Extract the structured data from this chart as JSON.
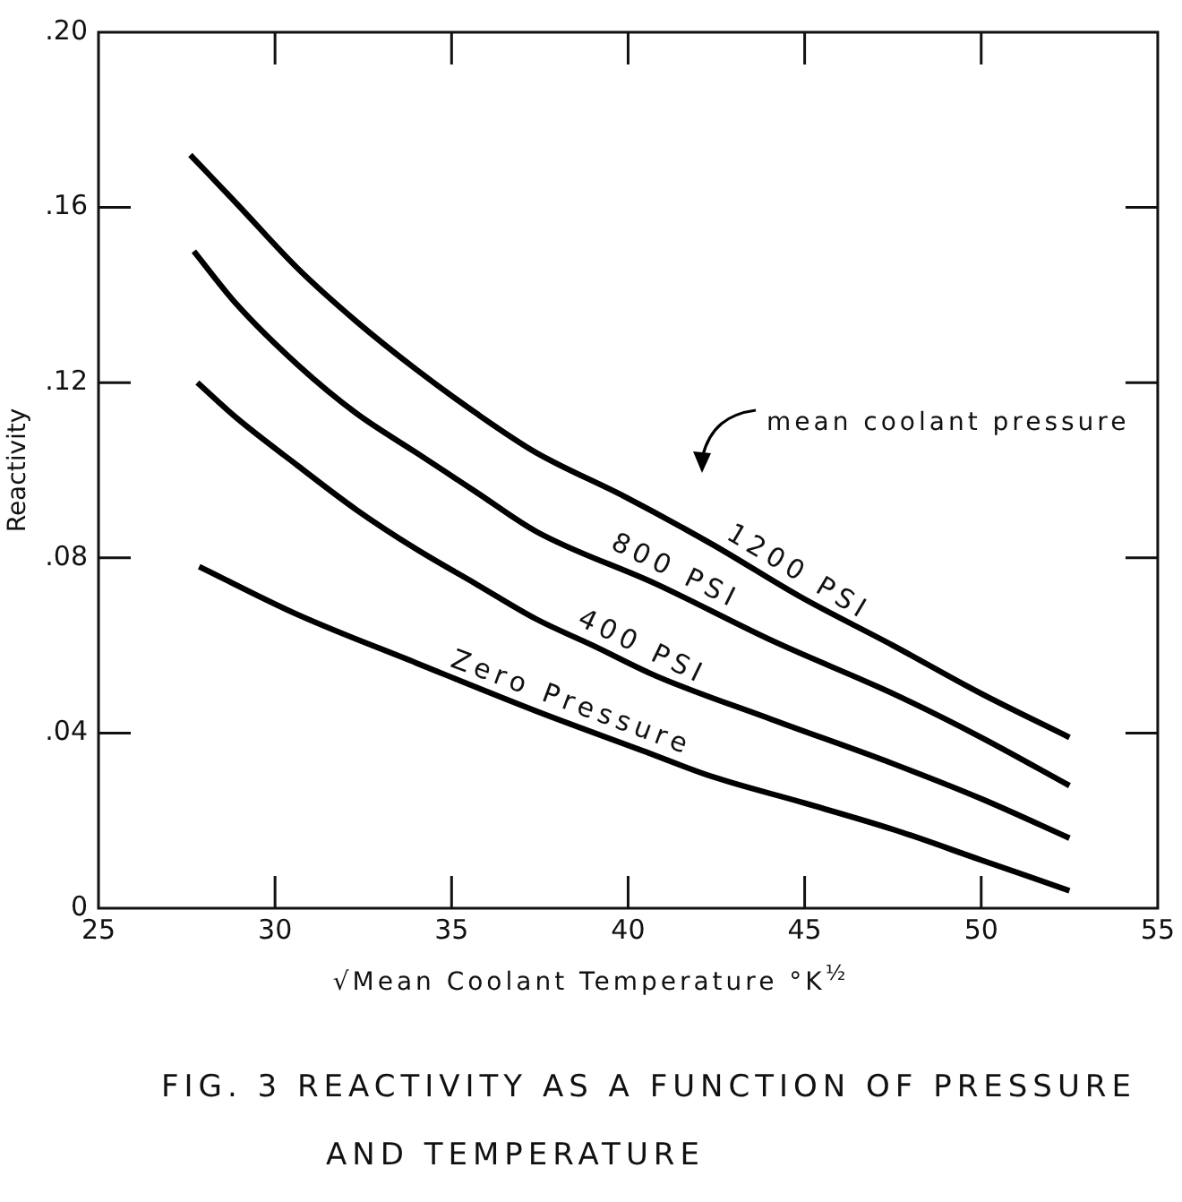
{
  "chart_data": {
    "type": "line",
    "title": "FIG. 3  REACTIVITY AS A FUNCTION OF PRESSURE AND TEMPERATURE",
    "xlabel": "√Mean Coolant Temperature  °K$^{½}$",
    "ylabel": "Reactivity",
    "annotations": [
      "mean coolant pressure"
    ],
    "xlim": [
      25,
      55
    ],
    "xticks": [
      25,
      30,
      35,
      40,
      45,
      50,
      55
    ],
    "ylim": [
      0,
      0.2
    ],
    "yticks": [
      {
        "value": 0,
        "label": "0"
      },
      {
        "value": 0.04,
        "label": ".04"
      },
      {
        "value": 0.08,
        "label": ".08"
      },
      {
        "value": 0.12,
        "label": ".12"
      },
      {
        "value": 0.16,
        "label": ".16"
      },
      {
        "value": 0.2,
        "label": ".20"
      }
    ],
    "grid": false,
    "legend": false,
    "marker": "none",
    "line_style": "solid",
    "series": [
      {
        "name": "1200 PSI",
        "color": "#000000",
        "x": [
          27.6,
          28.9,
          30.65,
          32.3,
          34.0,
          35.7,
          37.4,
          39.9,
          42.4,
          44.9,
          47.5,
          50.0,
          52.5
        ],
        "values": [
          0.172,
          0.161,
          0.146,
          0.134,
          0.123,
          0.113,
          0.104,
          0.094,
          0.083,
          0.071,
          0.06,
          0.049,
          0.039
        ]
      },
      {
        "name": "800 PSI",
        "color": "#000000",
        "x": [
          27.7,
          28.9,
          30.65,
          32.3,
          34.0,
          35.7,
          37.4,
          40.8,
          44.1,
          47.5,
          50.0,
          52.5
        ],
        "values": [
          0.15,
          0.138,
          0.124,
          0.113,
          0.104,
          0.095,
          0.086,
          0.074,
          0.061,
          0.049,
          0.039,
          0.028
        ]
      },
      {
        "name": "400 PSI",
        "color": "#000000",
        "x": [
          27.8,
          28.9,
          30.65,
          32.3,
          34.0,
          35.7,
          37.4,
          39.0,
          40.8,
          44.1,
          47.5,
          50.0,
          52.5
        ],
        "values": [
          0.12,
          0.112,
          0.101,
          0.091,
          0.082,
          0.074,
          0.066,
          0.06,
          0.053,
          0.043,
          0.033,
          0.025,
          0.016
        ]
      },
      {
        "name": "Zero Pressure",
        "color": "#000000",
        "x": [
          27.85,
          30.65,
          34.0,
          37.4,
          40.4,
          42.4,
          45.0,
          47.5,
          50.0,
          52.5
        ],
        "values": [
          0.078,
          0.067,
          0.056,
          0.045,
          0.036,
          0.03,
          0.024,
          0.018,
          0.011,
          0.004
        ]
      }
    ]
  }
}
